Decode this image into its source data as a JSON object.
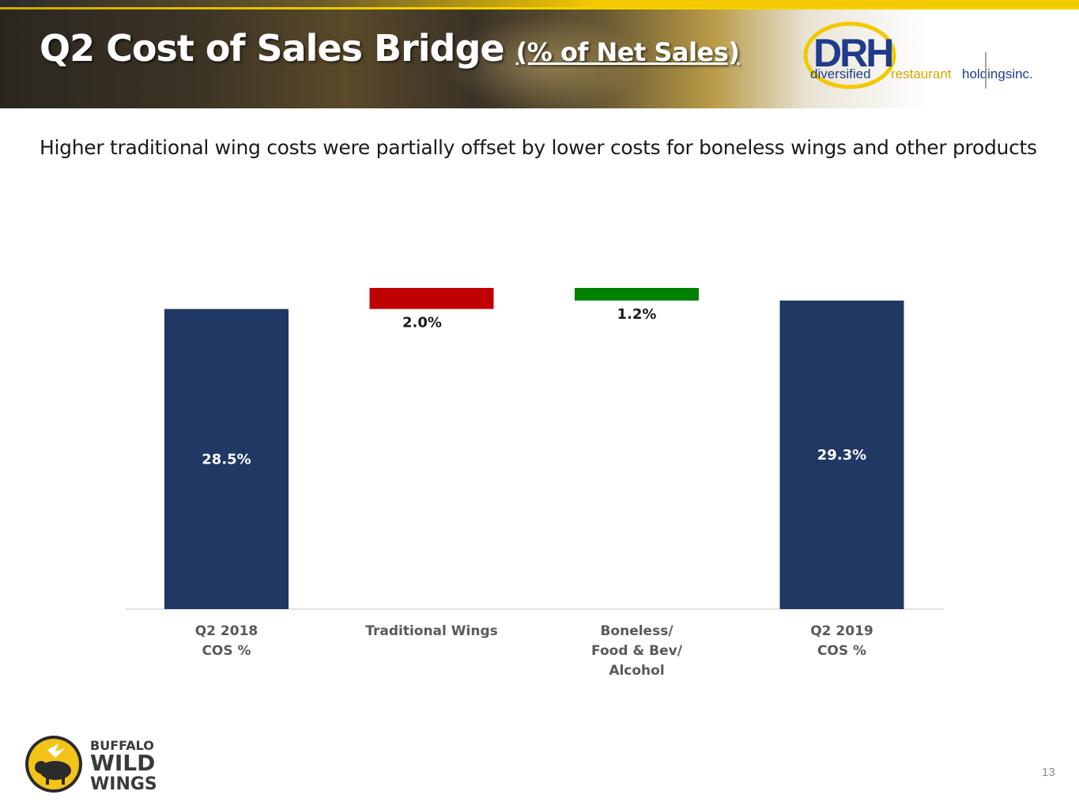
{
  "slide": {
    "title": "Q2 Cost of Sales Bridge",
    "title_sub": "(% of Net Sales)",
    "subtitle": "Higher traditional wing costs were partially offset by lower costs for boneless wings and other products",
    "page_number": "13"
  },
  "logos": {
    "drh": {
      "mark": "DRH",
      "word_diversified": "diversified",
      "word_restaurant": "restaurant",
      "word_holdings": "holdingsinc."
    },
    "bww": {
      "line1": "BUFFALO",
      "line2": "WILD",
      "line3": "WINGS",
      "icon": "bison-icon"
    }
  },
  "colors": {
    "total_bar": "#1f3864",
    "increase_bar": "#c00000",
    "decrease_bar": "#008000",
    "accent_yellow": "#f2c800"
  },
  "chart_data": {
    "type": "bar",
    "subtype": "waterfall",
    "categories": [
      "Q2 2018\nCOS %",
      "Traditional Wings",
      "Boneless/\nFood & Bev/\nAlcohol",
      "Q2 2019\nCOS %"
    ],
    "bars": [
      {
        "category": "Q2 2018\nCOS %",
        "kind": "total",
        "start": 0,
        "end": 28.5,
        "label": "28.5%"
      },
      {
        "category": "Traditional Wings",
        "kind": "increase",
        "start": 28.5,
        "end": 30.5,
        "label": "2.0%"
      },
      {
        "category": "Boneless/\nFood & Bev/\nAlcohol",
        "kind": "decrease",
        "start": 30.5,
        "end": 29.3,
        "label": "1.2%"
      },
      {
        "category": "Q2 2019\nCOS %",
        "kind": "total",
        "start": 0,
        "end": 29.3,
        "label": "29.3%"
      }
    ],
    "ylim": [
      0,
      30.5
    ],
    "grid": false,
    "legend": "none"
  }
}
